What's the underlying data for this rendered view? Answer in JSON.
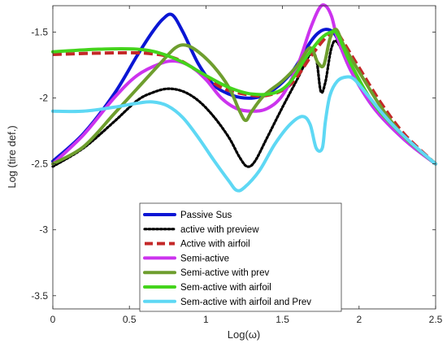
{
  "chart_data": {
    "type": "line",
    "xlabel": "Log(ω)",
    "ylabel": "Log (tire def.)",
    "xlim": [
      0,
      2.5
    ],
    "ylim": [
      -3.6,
      -1.3
    ],
    "xticks": [
      0,
      0.5,
      1,
      1.5,
      2,
      2.5
    ],
    "xtick_labels": [
      "0",
      "0.5",
      "1",
      "1.5",
      "2",
      "2.5"
    ],
    "yticks": [
      -1.5,
      -2,
      -2.5,
      -3,
      -3.5
    ],
    "ytick_labels": [
      "-1.5",
      "-2",
      "-2.5",
      "-3",
      "-3.5"
    ],
    "grid": false,
    "legend_position": "bottom-center",
    "series": [
      {
        "name": "Passive Sus",
        "color": "#0a16d4",
        "dash": "solid",
        "x": [
          0,
          0.2,
          0.4,
          0.55,
          0.65,
          0.72,
          0.78,
          0.85,
          0.95,
          1.05,
          1.15,
          1.25,
          1.35,
          1.45,
          1.55,
          1.62,
          1.68,
          1.73,
          1.78,
          1.83,
          1.87,
          1.95,
          2.1,
          2.3,
          2.5
        ],
        "y": [
          -2.48,
          -2.27,
          -1.97,
          -1.68,
          -1.5,
          -1.4,
          -1.37,
          -1.5,
          -1.74,
          -1.9,
          -1.97,
          -2.0,
          -1.99,
          -1.93,
          -1.82,
          -1.7,
          -1.58,
          -1.51,
          -1.48,
          -1.5,
          -1.58,
          -1.8,
          -2.08,
          -2.32,
          -2.5
        ]
      },
      {
        "name": "active with preview",
        "color": "#000000",
        "dash": "dotted",
        "x": [
          0,
          0.2,
          0.4,
          0.55,
          0.65,
          0.75,
          0.85,
          0.95,
          1.05,
          1.15,
          1.22,
          1.27,
          1.32,
          1.4,
          1.5,
          1.6,
          1.68,
          1.72,
          1.75,
          1.78,
          1.82,
          1.86,
          1.95,
          2.1,
          2.3,
          2.5
        ],
        "y": [
          -2.52,
          -2.38,
          -2.18,
          -2.02,
          -1.96,
          -1.93,
          -1.95,
          -2.02,
          -2.14,
          -2.3,
          -2.45,
          -2.52,
          -2.48,
          -2.3,
          -2.07,
          -1.85,
          -1.67,
          -1.7,
          -1.95,
          -1.88,
          -1.62,
          -1.58,
          -1.8,
          -2.08,
          -2.32,
          -2.5
        ]
      },
      {
        "name": "Active with airfoil",
        "color": "#c42828",
        "dash": "dashed",
        "x": [
          0,
          0.3,
          0.6,
          0.8,
          0.95,
          1.1,
          1.25,
          1.4,
          1.55,
          1.7,
          1.8,
          1.85,
          1.9,
          2.0,
          2.15,
          2.3,
          2.5
        ],
        "y": [
          -1.67,
          -1.66,
          -1.66,
          -1.7,
          -1.8,
          -1.92,
          -1.97,
          -1.98,
          -1.9,
          -1.66,
          -1.52,
          -1.5,
          -1.58,
          -1.77,
          -2.05,
          -2.28,
          -2.5
        ]
      },
      {
        "name": "Semi-active",
        "color": "#cc33ee",
        "dash": "solid",
        "x": [
          0,
          0.2,
          0.4,
          0.55,
          0.7,
          0.8,
          0.9,
          1.0,
          1.1,
          1.2,
          1.3,
          1.4,
          1.5,
          1.6,
          1.68,
          1.74,
          1.78,
          1.82,
          1.86,
          1.95,
          2.1,
          2.3,
          2.5
        ],
        "y": [
          -2.5,
          -2.28,
          -2.0,
          -1.83,
          -1.74,
          -1.72,
          -1.76,
          -1.86,
          -2.0,
          -2.08,
          -2.1,
          -2.08,
          -1.98,
          -1.75,
          -1.48,
          -1.32,
          -1.3,
          -1.38,
          -1.55,
          -1.8,
          -2.08,
          -2.32,
          -2.5
        ]
      },
      {
        "name": "Semi-active with prev",
        "color": "#6e9e2e",
        "dash": "solid",
        "x": [
          0,
          0.2,
          0.4,
          0.55,
          0.7,
          0.8,
          0.87,
          0.95,
          1.05,
          1.15,
          1.22,
          1.26,
          1.3,
          1.38,
          1.5,
          1.6,
          1.68,
          1.73,
          1.77,
          1.81,
          1.85,
          1.9,
          2.0,
          2.15,
          2.3,
          2.5
        ],
        "y": [
          -2.5,
          -2.37,
          -2.12,
          -1.93,
          -1.74,
          -1.62,
          -1.6,
          -1.65,
          -1.76,
          -1.92,
          -2.1,
          -2.17,
          -2.1,
          -1.98,
          -1.87,
          -1.75,
          -1.62,
          -1.73,
          -1.75,
          -1.55,
          -1.48,
          -1.6,
          -1.8,
          -2.08,
          -2.3,
          -2.5
        ]
      },
      {
        "name": "Sem-active with airfoil",
        "color": "#44d41c",
        "dash": "solid",
        "x": [
          0,
          0.3,
          0.55,
          0.7,
          0.85,
          1.0,
          1.15,
          1.3,
          1.45,
          1.55,
          1.65,
          1.75,
          1.82,
          1.86,
          1.95,
          2.1,
          2.3,
          2.5
        ],
        "y": [
          -1.65,
          -1.63,
          -1.63,
          -1.66,
          -1.73,
          -1.83,
          -1.92,
          -1.97,
          -1.96,
          -1.88,
          -1.7,
          -1.55,
          -1.5,
          -1.52,
          -1.75,
          -2.05,
          -2.3,
          -2.5
        ]
      },
      {
        "name": "Sem-active with airfoil and Prev",
        "color": "#5ed8f4",
        "dash": "solid",
        "x": [
          0,
          0.2,
          0.4,
          0.55,
          0.65,
          0.75,
          0.85,
          0.95,
          1.05,
          1.15,
          1.2,
          1.25,
          1.35,
          1.45,
          1.55,
          1.63,
          1.68,
          1.72,
          1.76,
          1.78,
          1.81,
          1.86,
          1.92,
          1.97,
          2.05,
          2.2,
          2.35,
          2.5
        ],
        "y": [
          -2.1,
          -2.1,
          -2.07,
          -2.04,
          -2.03,
          -2.06,
          -2.15,
          -2.3,
          -2.47,
          -2.63,
          -2.7,
          -2.68,
          -2.55,
          -2.35,
          -2.2,
          -2.14,
          -2.2,
          -2.38,
          -2.38,
          -2.18,
          -1.98,
          -1.87,
          -1.84,
          -1.86,
          -1.97,
          -2.18,
          -2.35,
          -2.5
        ]
      }
    ]
  }
}
